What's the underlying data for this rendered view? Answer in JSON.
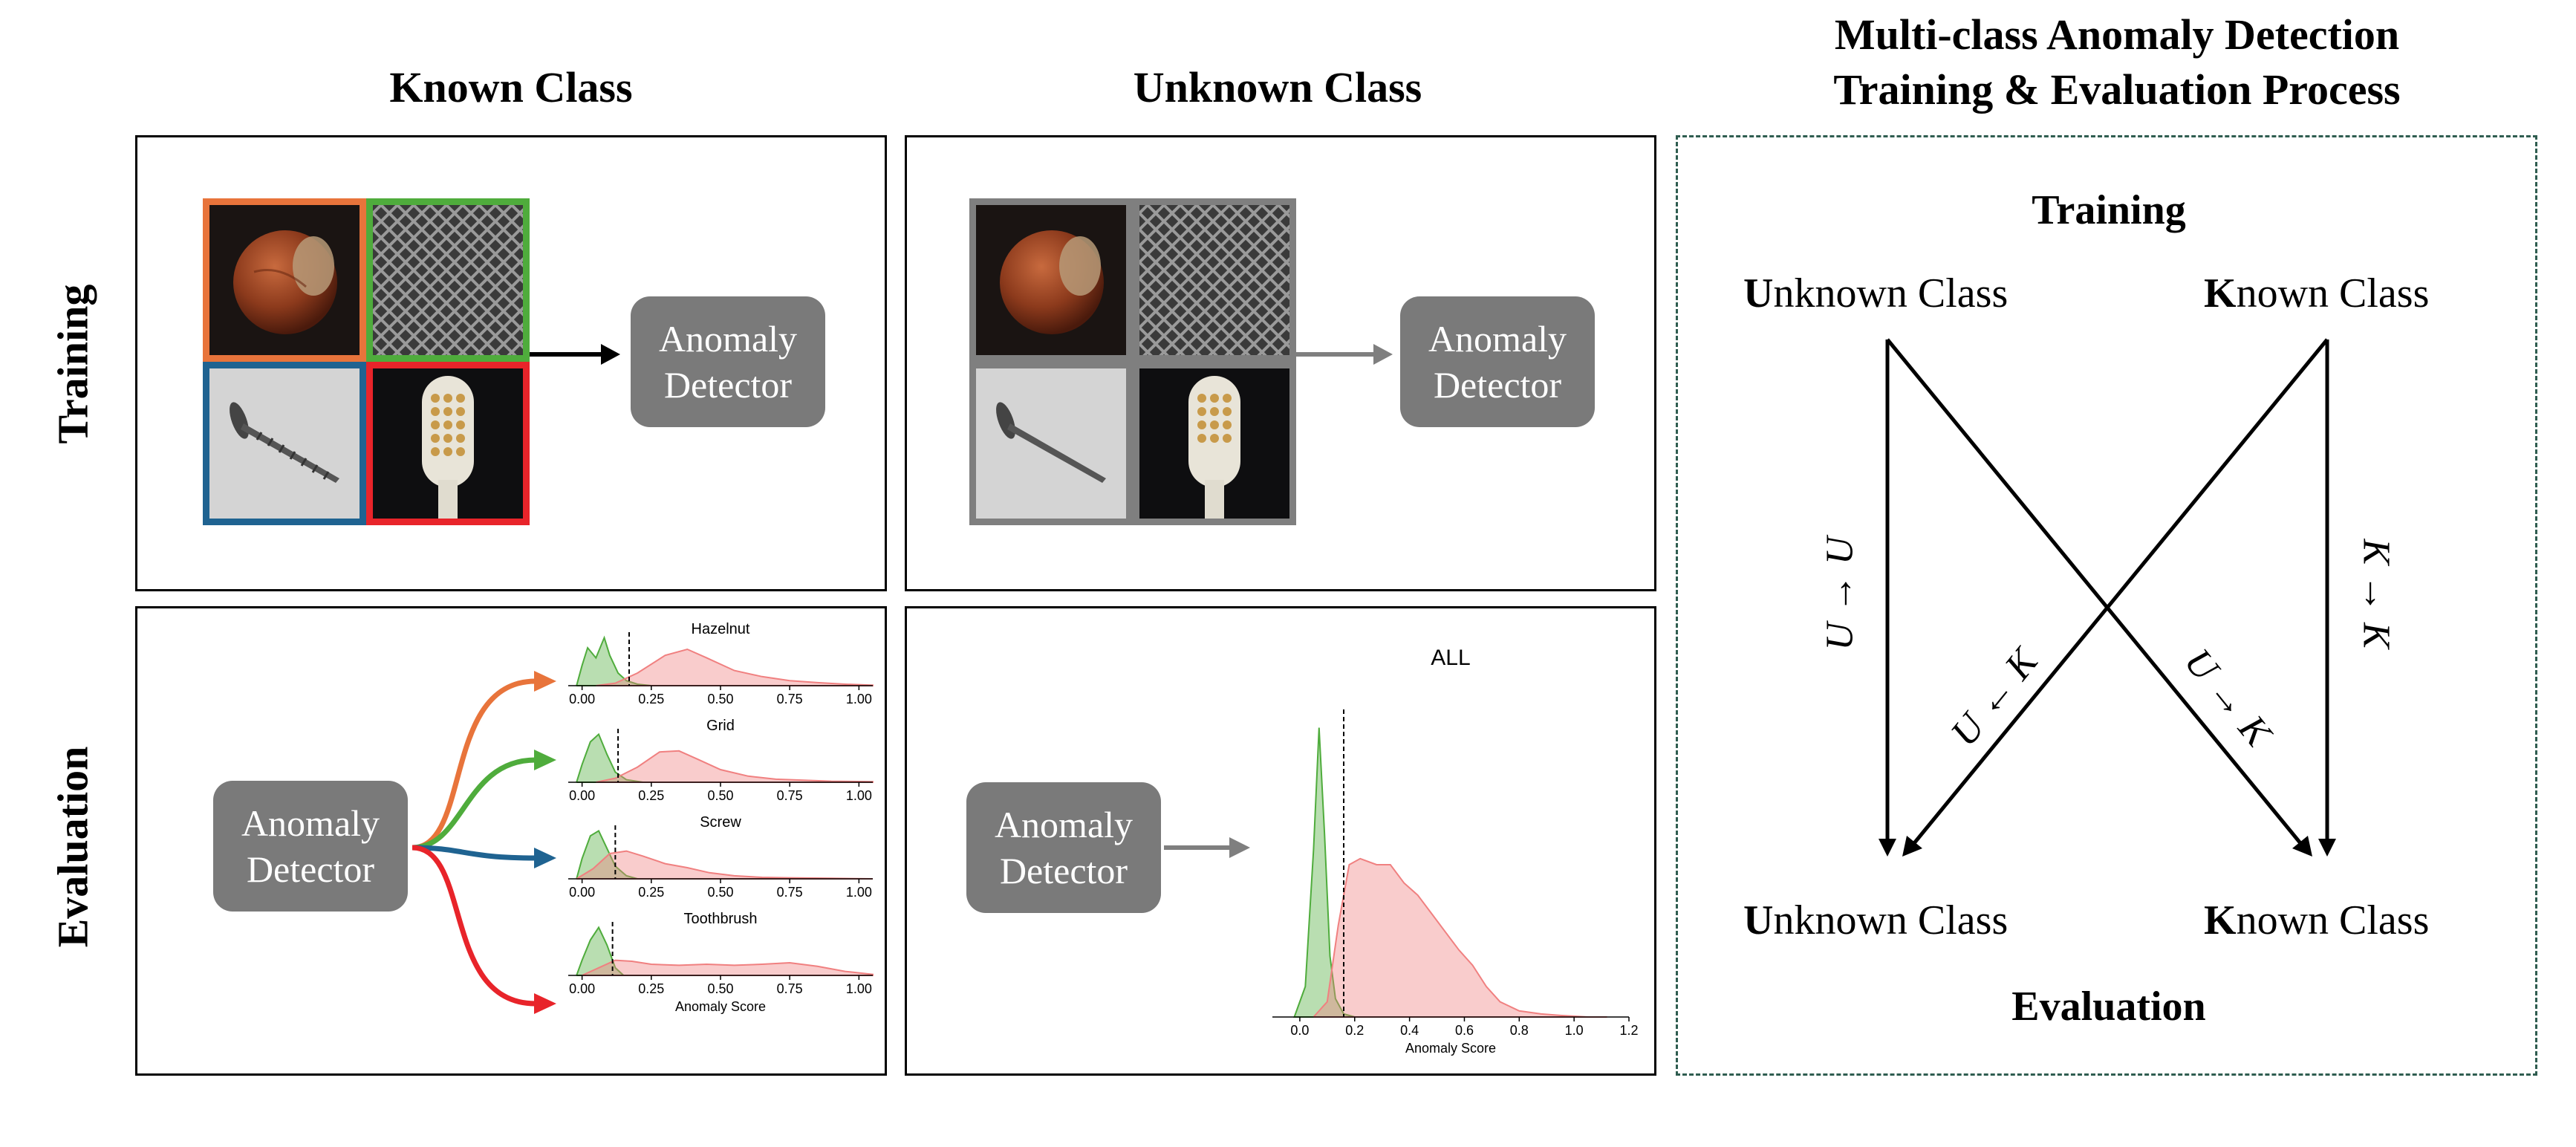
{
  "headers": {
    "known_class": "Known Class",
    "unknown_class": "Unknown Class",
    "process_line1": "Multi-class Anomaly Detection",
    "process_line2": "Training & Evaluation Process"
  },
  "rows": {
    "training": "Training",
    "evaluation": "Evaluation"
  },
  "detector": {
    "line1": "Anomaly",
    "line2": "Detector"
  },
  "known_class_tiles": [
    {
      "name": "hazelnut",
      "border_color": "#e8743b"
    },
    {
      "name": "grid",
      "border_color": "#4fac3c"
    },
    {
      "name": "screw",
      "border_color": "#1f6391"
    },
    {
      "name": "toothbrush",
      "border_color": "#e8242a"
    }
  ],
  "unknown_class_tile_border": "#7f7f7f",
  "chart_data": [
    {
      "type": "area",
      "title": "Hazelnut",
      "xticks": [
        "0.00",
        "0.25",
        "0.50",
        "0.75",
        "1.00"
      ],
      "xlim": [
        -0.05,
        1.05
      ],
      "threshold": 0.17,
      "series": [
        {
          "color": "#4fac3c",
          "x": [
            -0.02,
            0.0,
            0.02,
            0.05,
            0.08,
            0.1,
            0.13,
            0.16,
            0.2,
            0.25
          ],
          "y": [
            0.0,
            0.4,
            0.75,
            0.55,
            0.95,
            0.6,
            0.25,
            0.1,
            0.03,
            0.0
          ]
        },
        {
          "color": "#f08080",
          "x": [
            0.05,
            0.12,
            0.2,
            0.3,
            0.38,
            0.45,
            0.55,
            0.65,
            0.75,
            0.85,
            0.95,
            1.05
          ],
          "y": [
            0.0,
            0.05,
            0.25,
            0.6,
            0.72,
            0.55,
            0.3,
            0.18,
            0.1,
            0.06,
            0.03,
            0.01
          ]
        }
      ]
    },
    {
      "type": "area",
      "title": "Grid",
      "xticks": [
        "0.00",
        "0.25",
        "0.50",
        "0.75",
        "1.00"
      ],
      "xlim": [
        -0.05,
        1.05
      ],
      "threshold": 0.13,
      "series": [
        {
          "color": "#4fac3c",
          "x": [
            -0.02,
            0.0,
            0.03,
            0.06,
            0.09,
            0.12,
            0.16,
            0.22
          ],
          "y": [
            0.0,
            0.35,
            0.8,
            0.95,
            0.55,
            0.2,
            0.05,
            0.0
          ]
        },
        {
          "color": "#f08080",
          "x": [
            0.05,
            0.12,
            0.2,
            0.28,
            0.35,
            0.42,
            0.5,
            0.6,
            0.7,
            0.8,
            0.9,
            1.05
          ],
          "y": [
            0.0,
            0.08,
            0.3,
            0.6,
            0.62,
            0.45,
            0.25,
            0.12,
            0.06,
            0.04,
            0.02,
            0.01
          ]
        }
      ]
    },
    {
      "type": "area",
      "title": "Screw",
      "xticks": [
        "0.00",
        "0.25",
        "0.50",
        "0.75",
        "1.00"
      ],
      "xlim": [
        -0.05,
        1.05
      ],
      "threshold": 0.12,
      "series": [
        {
          "color": "#4fac3c",
          "x": [
            -0.02,
            0.0,
            0.03,
            0.06,
            0.09,
            0.12,
            0.16,
            0.2
          ],
          "y": [
            0.0,
            0.4,
            0.85,
            0.95,
            0.6,
            0.25,
            0.06,
            0.0
          ]
        },
        {
          "color": "#f08080",
          "x": [
            -0.02,
            0.04,
            0.1,
            0.16,
            0.22,
            0.3,
            0.38,
            0.46,
            0.55,
            0.65,
            0.75,
            0.9,
            1.05
          ],
          "y": [
            0.0,
            0.2,
            0.5,
            0.55,
            0.45,
            0.3,
            0.22,
            0.12,
            0.06,
            0.03,
            0.02,
            0.01,
            0.0
          ]
        }
      ]
    },
    {
      "type": "area",
      "title": "Toothbrush",
      "xlabel": "Anomaly Score",
      "xticks": [
        "0.00",
        "0.25",
        "0.50",
        "0.75",
        "1.00"
      ],
      "xlim": [
        -0.05,
        1.05
      ],
      "threshold": 0.11,
      "series": [
        {
          "color": "#4fac3c",
          "x": [
            -0.02,
            0.0,
            0.03,
            0.06,
            0.09,
            0.12,
            0.15
          ],
          "y": [
            0.0,
            0.3,
            0.7,
            0.95,
            0.6,
            0.15,
            0.0
          ]
        },
        {
          "color": "#f08080",
          "x": [
            0.0,
            0.06,
            0.12,
            0.18,
            0.25,
            0.35,
            0.45,
            0.55,
            0.65,
            0.75,
            0.85,
            0.95,
            1.05
          ],
          "y": [
            0.0,
            0.15,
            0.3,
            0.28,
            0.22,
            0.2,
            0.22,
            0.2,
            0.22,
            0.25,
            0.18,
            0.08,
            0.02
          ]
        }
      ]
    },
    {
      "type": "area",
      "title": "ALL",
      "xlabel": "Anomaly Score",
      "xticks": [
        "0.0",
        "0.2",
        "0.4",
        "0.6",
        "0.8",
        "1.0",
        "1.2"
      ],
      "xlim": [
        -0.1,
        1.2
      ],
      "threshold": 0.16,
      "series": [
        {
          "color": "#4fac3c",
          "x": [
            -0.02,
            0.02,
            0.05,
            0.07,
            0.09,
            0.11,
            0.13,
            0.16,
            0.2
          ],
          "y": [
            0.0,
            0.1,
            0.55,
            0.95,
            0.6,
            0.2,
            0.06,
            0.01,
            0.0
          ]
        },
        {
          "color": "#f08080",
          "x": [
            0.05,
            0.1,
            0.14,
            0.18,
            0.22,
            0.28,
            0.33,
            0.38,
            0.43,
            0.48,
            0.53,
            0.58,
            0.63,
            0.68,
            0.73,
            0.8,
            0.88,
            0.95,
            1.05,
            1.12
          ],
          "y": [
            0.0,
            0.05,
            0.3,
            0.5,
            0.52,
            0.5,
            0.5,
            0.44,
            0.4,
            0.34,
            0.28,
            0.22,
            0.17,
            0.1,
            0.05,
            0.02,
            0.01,
            0.005,
            0.0,
            0.0
          ]
        }
      ]
    }
  ],
  "process": {
    "training": "Training",
    "evaluation": "Evaluation",
    "train_unknown_initial": "U",
    "train_unknown_rest": "nknown Class",
    "train_known_initial": "K",
    "train_known_rest": "nown Class",
    "eval_unknown_initial": "U",
    "eval_unknown_rest": "nknown Class",
    "eval_known_initial": "K",
    "eval_known_rest": "nown Class",
    "edges": {
      "uu": "U → U",
      "kk": "K → K",
      "ku": "U ← K",
      "uk": "U → K"
    }
  }
}
